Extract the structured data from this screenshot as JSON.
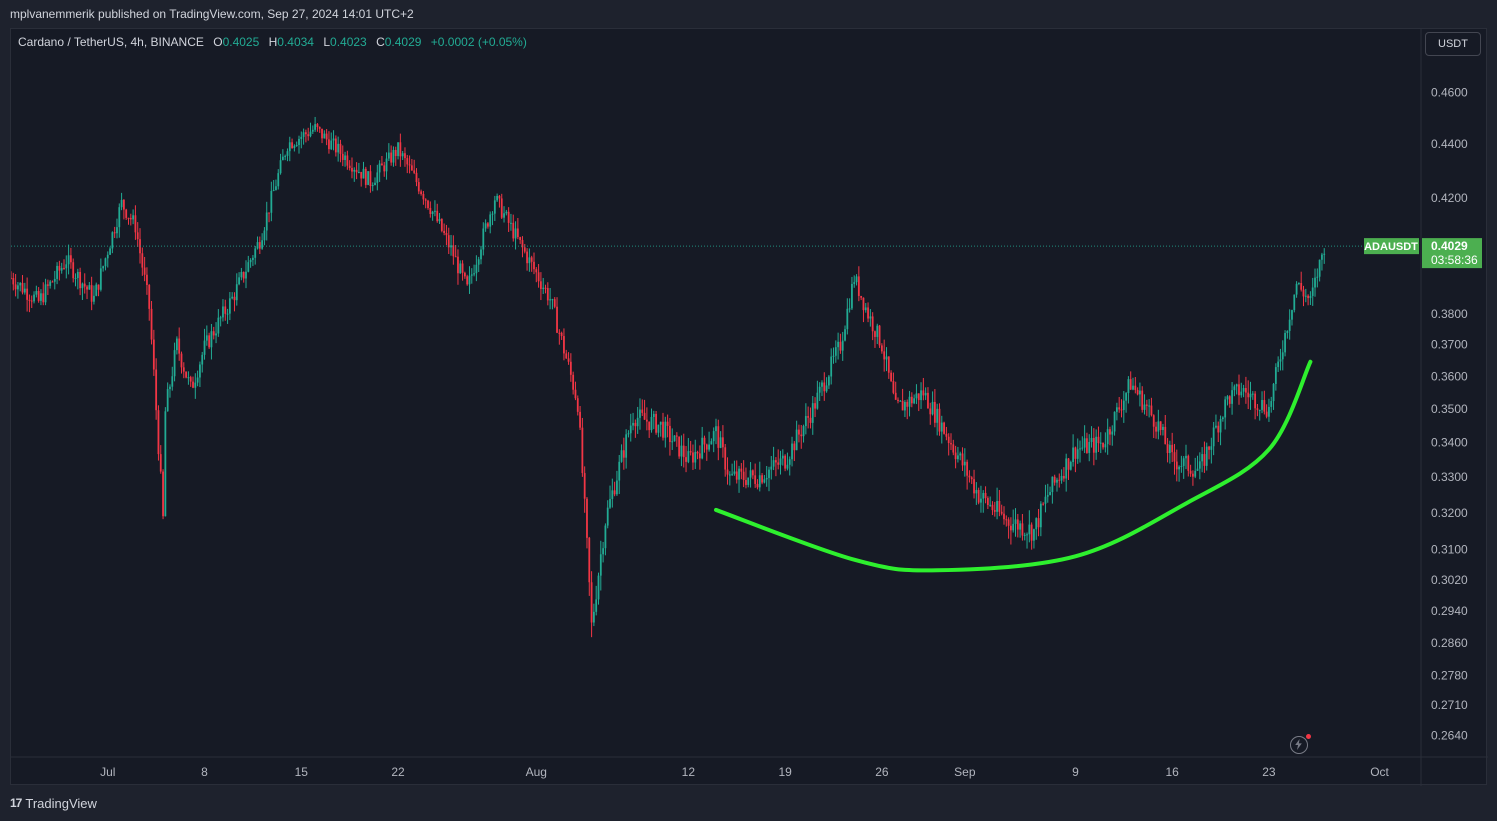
{
  "banner": {
    "text": "mplvanemmerik published on TradingView.com, Sep 27, 2024 14:01 UTC+2"
  },
  "legend": {
    "symbol": "Cardano / TetherUS, 4h, BINANCE",
    "open_label": "O",
    "open": "0.4025",
    "high_label": "H",
    "high": "0.4034",
    "low_label": "L",
    "low": "0.4023",
    "close_label": "C",
    "close": "0.4029",
    "change": "+0.0002 (+0.05%)"
  },
  "currency_button": "USDT",
  "footer": {
    "brand": "TradingView",
    "brand_mark": "17"
  },
  "colors": {
    "up": "#22ab94",
    "down": "#f23645",
    "pattern_curve": "#2ef02e",
    "price_tag": "#4caf50",
    "background": "#161a25"
  },
  "icons": {
    "replay": "lightning-icon"
  },
  "chart_data": {
    "type": "candlestick",
    "symbol": "ADAUSDT",
    "interval": "4h",
    "log_scale": true,
    "ylim": [
      0.2605,
      0.4695
    ],
    "y_ticks": [
      "0.4600",
      "0.4400",
      "0.4200",
      "0.3800",
      "0.3700",
      "0.3600",
      "0.3500",
      "0.3400",
      "0.3300",
      "0.3200",
      "0.3100",
      "0.3020",
      "0.2940",
      "0.2860",
      "0.2780",
      "0.2710",
      "0.2640"
    ],
    "x_ticks": [
      "Jul",
      "8",
      "15",
      "22",
      "Aug",
      "12",
      "19",
      "26",
      "Sep",
      "9",
      "16",
      "23",
      "Oct"
    ],
    "x_tick_dates": [
      "2024-07-01",
      "2024-07-08",
      "2024-07-15",
      "2024-07-22",
      "2024-08-01",
      "2024-08-12",
      "2024-08-19",
      "2024-08-26",
      "2024-09-01",
      "2024-09-09",
      "2024-09-16",
      "2024-09-23",
      "2024-10-01"
    ],
    "xlim": [
      "2024-06-24",
      "2024-10-04"
    ],
    "current_price": {
      "label": "ADAUSDT",
      "value": "0.4029",
      "countdown": "03:58:36"
    },
    "price_path": [
      {
        "date": "2024-06-24",
        "close": 0.392
      },
      {
        "date": "2024-06-26",
        "close": 0.384
      },
      {
        "date": "2024-06-28",
        "close": 0.398
      },
      {
        "date": "2024-06-30",
        "close": 0.385
      },
      {
        "date": "2024-07-02",
        "close": 0.418
      },
      {
        "date": "2024-07-03",
        "close": 0.41
      },
      {
        "date": "2024-07-04",
        "close": 0.382
      },
      {
        "date": "2024-07-05",
        "close": 0.318
      },
      {
        "date": "2024-07-05",
        "close": 0.345
      },
      {
        "date": "2024-07-06",
        "close": 0.37
      },
      {
        "date": "2024-07-07",
        "close": 0.356
      },
      {
        "date": "2024-07-08",
        "close": 0.369
      },
      {
        "date": "2024-07-10",
        "close": 0.385
      },
      {
        "date": "2024-07-12",
        "close": 0.405
      },
      {
        "date": "2024-07-14",
        "close": 0.44
      },
      {
        "date": "2024-07-16",
        "close": 0.446
      },
      {
        "date": "2024-07-18",
        "close": 0.436
      },
      {
        "date": "2024-07-20",
        "close": 0.426
      },
      {
        "date": "2024-07-22",
        "close": 0.438
      },
      {
        "date": "2024-07-24",
        "close": 0.42
      },
      {
        "date": "2024-07-26",
        "close": 0.4
      },
      {
        "date": "2024-07-27",
        "close": 0.388
      },
      {
        "date": "2024-07-29",
        "close": 0.42
      },
      {
        "date": "2024-07-31",
        "close": 0.402
      },
      {
        "date": "2024-08-02",
        "close": 0.385
      },
      {
        "date": "2024-08-04",
        "close": 0.352
      },
      {
        "date": "2024-08-05",
        "close": 0.29
      },
      {
        "date": "2024-08-06",
        "close": 0.318
      },
      {
        "date": "2024-08-07",
        "close": 0.333
      },
      {
        "date": "2024-08-08",
        "close": 0.348
      },
      {
        "date": "2024-08-10",
        "close": 0.345
      },
      {
        "date": "2024-08-12",
        "close": 0.335
      },
      {
        "date": "2024-08-14",
        "close": 0.343
      },
      {
        "date": "2024-08-15",
        "close": 0.33
      },
      {
        "date": "2024-08-17",
        "close": 0.33
      },
      {
        "date": "2024-08-19",
        "close": 0.335
      },
      {
        "date": "2024-08-21",
        "close": 0.35
      },
      {
        "date": "2024-08-23",
        "close": 0.37
      },
      {
        "date": "2024-08-24",
        "close": 0.392
      },
      {
        "date": "2024-08-25",
        "close": 0.38
      },
      {
        "date": "2024-08-26",
        "close": 0.37
      },
      {
        "date": "2024-08-27",
        "close": 0.35
      },
      {
        "date": "2024-08-29",
        "close": 0.355
      },
      {
        "date": "2024-08-31",
        "close": 0.34
      },
      {
        "date": "2024-09-02",
        "close": 0.325
      },
      {
        "date": "2024-09-04",
        "close": 0.318
      },
      {
        "date": "2024-09-06",
        "close": 0.315
      },
      {
        "date": "2024-09-07",
        "close": 0.325
      },
      {
        "date": "2024-09-09",
        "close": 0.338
      },
      {
        "date": "2024-09-11",
        "close": 0.34
      },
      {
        "date": "2024-09-13",
        "close": 0.358
      },
      {
        "date": "2024-09-15",
        "close": 0.345
      },
      {
        "date": "2024-09-16",
        "close": 0.335
      },
      {
        "date": "2024-09-18",
        "close": 0.332
      },
      {
        "date": "2024-09-20",
        "close": 0.353
      },
      {
        "date": "2024-09-21",
        "close": 0.356
      },
      {
        "date": "2024-09-23",
        "close": 0.35
      },
      {
        "date": "2024-09-25",
        "close": 0.39
      },
      {
        "date": "2024-09-26",
        "close": 0.384
      },
      {
        "date": "2024-09-27",
        "close": 0.4029
      }
    ],
    "pattern_curve": [
      {
        "date": "2024-08-14",
        "price": 0.3208
      },
      {
        "date": "2024-08-24",
        "price": 0.3073
      },
      {
        "date": "2024-08-30",
        "price": 0.3045
      },
      {
        "date": "2024-09-09",
        "price": 0.3082
      },
      {
        "date": "2024-09-17",
        "price": 0.3226
      },
      {
        "date": "2024-09-23",
        "price": 0.338
      },
      {
        "date": "2024-09-26",
        "price": 0.3646
      }
    ]
  }
}
